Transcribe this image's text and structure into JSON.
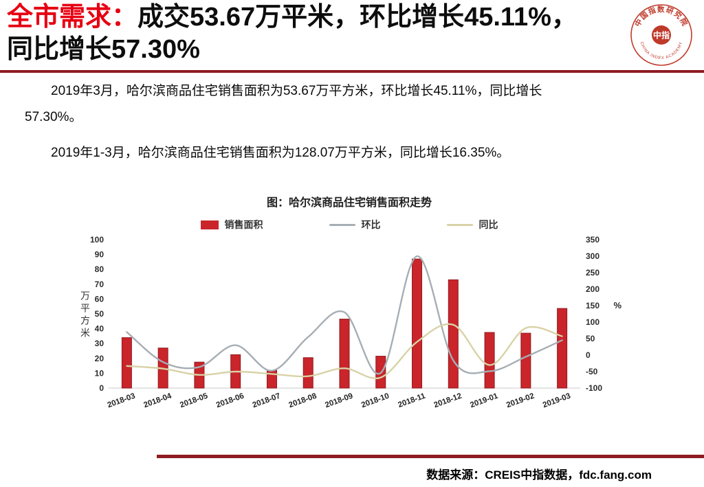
{
  "title": {
    "highlight": "全市需求：",
    "line1": "成交53.67万平米，环比增长45.11%，",
    "line2": "同比增长57.30%"
  },
  "logo": {
    "ring_top": "中国指数研究院",
    "ring_bottom": "CHINA INDEX ACADEMY",
    "seal": "中指"
  },
  "body": {
    "p1_line1": "2019年3月，哈尔滨商品住宅销售面积为53.67万平方米，环比增长45.11%，同比增长",
    "p1_line2": "57.30%。",
    "p2": "2019年1-3月，哈尔滨商品住宅销售面积为128.07万平方米，同比增长16.35%。"
  },
  "footer": {
    "source": "数据来源：CREIS中指数据，fdc.fang.com"
  },
  "chart_data": {
    "type": "bar",
    "title": "图：哈尔滨商品住宅销售面积走势",
    "categories": [
      "2018-03",
      "2018-04",
      "2018-05",
      "2018-06",
      "2018-07",
      "2018-08",
      "2018-09",
      "2018-10",
      "2018-11",
      "2018-12",
      "2019-01",
      "2019-02",
      "2019-03"
    ],
    "series": [
      {
        "name": "销售面积",
        "type": "bar",
        "axis": "left",
        "color": "#c9252b",
        "values": [
          34,
          27,
          17.5,
          22.5,
          12,
          20.5,
          46.5,
          21.5,
          87,
          73,
          37.5,
          37,
          53.67
        ]
      },
      {
        "name": "环比",
        "type": "line",
        "axis": "right",
        "color": "#a6aeb4",
        "values": [
          70,
          -21,
          -36,
          30,
          -47,
          55,
          130,
          -54,
          300,
          -16,
          -49,
          -5,
          45.11
        ]
      },
      {
        "name": "同比",
        "type": "line",
        "axis": "right",
        "color": "#d8d2a6",
        "values": [
          -33,
          -41,
          -60,
          -50,
          -57,
          -64,
          -40,
          -68,
          40,
          92,
          -30,
          82,
          57.3
        ]
      }
    ],
    "left_axis": {
      "label": "万平方米",
      "min": 0,
      "max": 100,
      "step": 10
    },
    "right_axis": {
      "label": "%",
      "min": -100,
      "max": 350,
      "step": 50
    },
    "legend_position": "top",
    "grid": false
  }
}
